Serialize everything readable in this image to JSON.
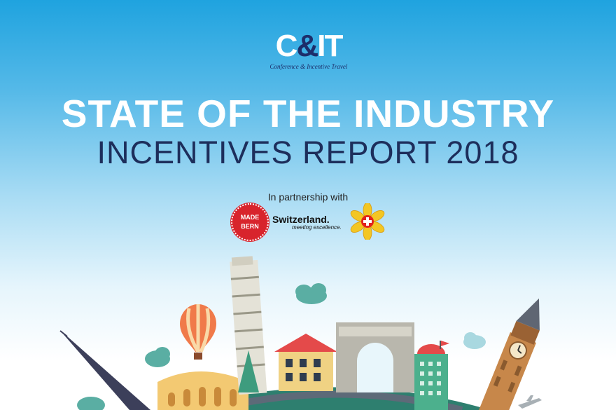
{
  "logo": {
    "part1": "C",
    "amp": "&",
    "part2": "IT",
    "subtitle": "Conference & Incentive Travel"
  },
  "title": {
    "line1": "STATE OF THE INDUSTRY",
    "line2": "INCENTIVES REPORT 2018"
  },
  "partnership": {
    "intro": "In partnership with",
    "bern_badge": {
      "line1": "MADE",
      "line2": "BERN"
    },
    "switzerland": {
      "name": "Switzerland.",
      "tagline": "meeting excellence."
    }
  },
  "colors": {
    "sky_top": "#1fa3df",
    "navy": "#1d2e5b",
    "bern_red": "#d8242c"
  },
  "icons": [
    "eiffel-tower-icon",
    "hot-air-balloon-icon",
    "leaning-tower-icon",
    "arc-de-triomphe-icon",
    "big-ben-icon",
    "cloud-icon"
  ]
}
